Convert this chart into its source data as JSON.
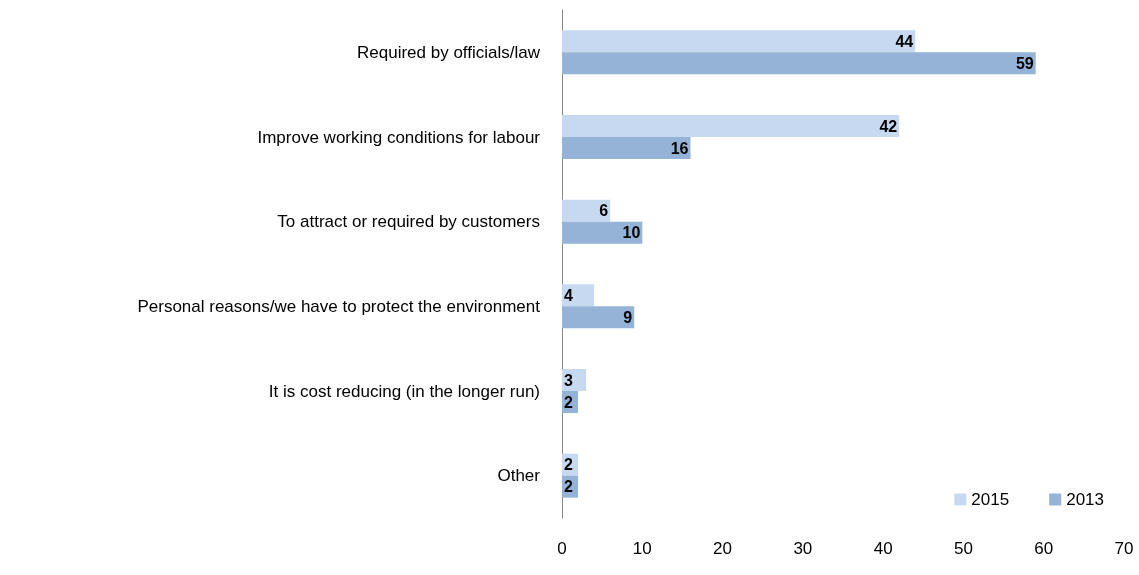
{
  "chart_data": {
    "type": "bar",
    "orientation": "horizontal",
    "categories": [
      "Required by officials/law",
      "Improve working conditions for labour",
      "To attract or required by customers",
      "Personal reasons/we have to protect the environment",
      "It is cost reducing (in the longer run)",
      "Other"
    ],
    "series": [
      {
        "name": "2015",
        "color": "#c6d9f1",
        "values": [
          44,
          42,
          6,
          4,
          3,
          2
        ]
      },
      {
        "name": "2013",
        "color": "#95b3d7",
        "values": [
          59,
          16,
          10,
          9,
          2,
          2
        ]
      }
    ],
    "xlim": [
      0,
      70
    ],
    "xticks": [
      0,
      10,
      20,
      30,
      40,
      50,
      60,
      70
    ],
    "data_labels": true,
    "grid": false,
    "legend": "bottom right"
  }
}
